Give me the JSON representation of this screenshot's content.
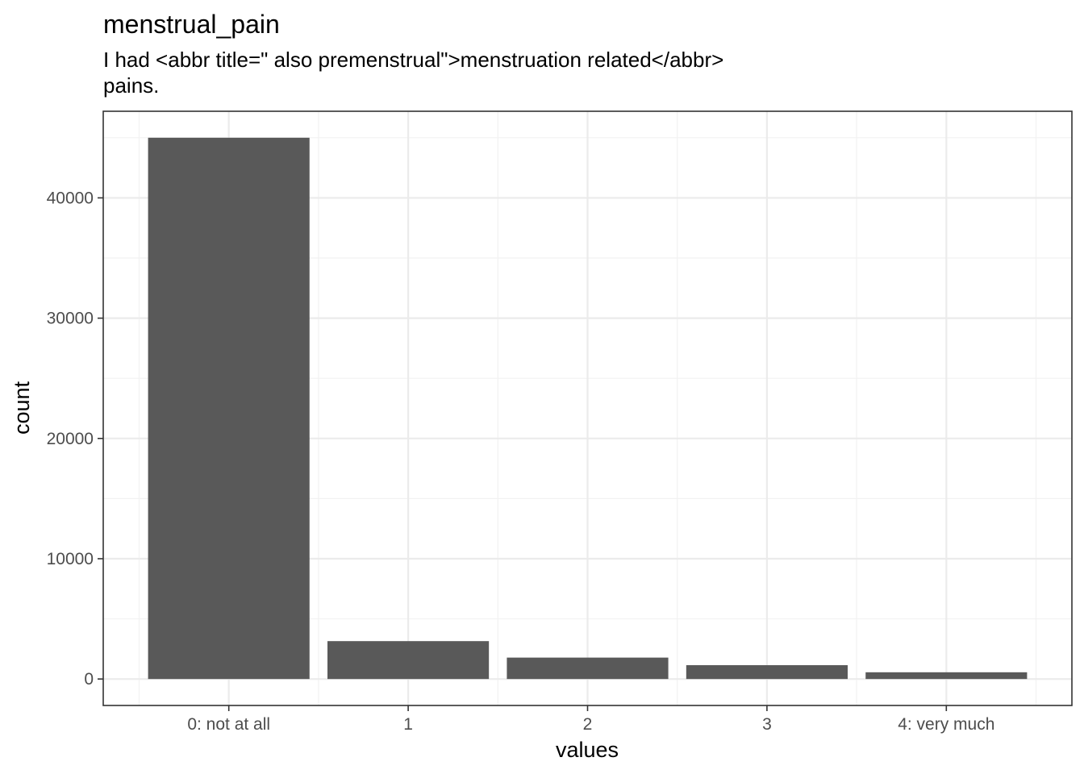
{
  "chart_data": {
    "type": "bar",
    "title": "menstrual_pain",
    "subtitle_lines": [
      "I had <abbr title=\" also premenstrual\">menstruation related</abbr>",
      "pains."
    ],
    "xlabel": "values",
    "ylabel": "count",
    "categories": [
      "0: not at all",
      "1",
      "2",
      "3",
      "4: very much"
    ],
    "values": [
      45000,
      3150,
      1780,
      1150,
      560
    ],
    "ylim": [
      -2200,
      47200
    ],
    "yticks": [
      0,
      10000,
      20000,
      30000,
      40000
    ],
    "ytick_labels": [
      "0",
      "10000",
      "20000",
      "30000",
      "40000"
    ],
    "grid": true,
    "legend": "none",
    "colors": {
      "bar": "#595959",
      "panel_border": "#333333",
      "grid_major": "#ebebeb",
      "grid_minor": "#f2f2f2",
      "tick_text": "#4d4d4d"
    }
  }
}
